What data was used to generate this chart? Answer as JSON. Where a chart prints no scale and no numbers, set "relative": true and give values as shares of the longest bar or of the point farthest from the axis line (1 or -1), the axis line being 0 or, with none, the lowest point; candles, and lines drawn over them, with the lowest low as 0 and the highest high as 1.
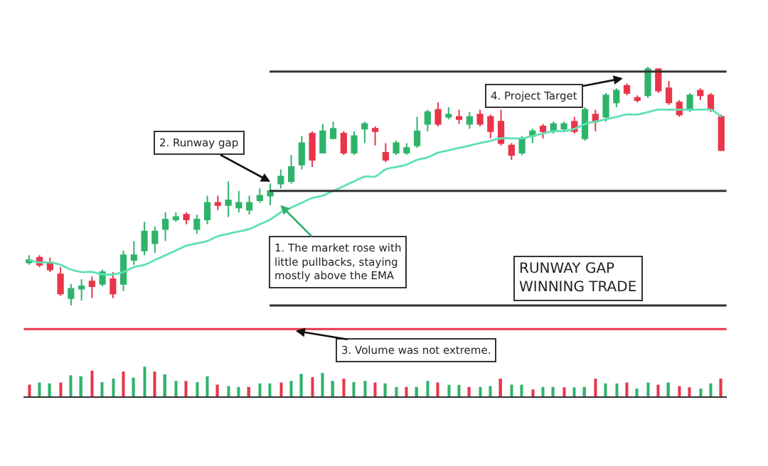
{
  "chart_data": [
    {
      "type": "candlestick",
      "relative": true,
      "tick_labels": false,
      "categories": [
        null,
        null,
        null,
        null,
        null,
        null,
        null,
        null,
        null,
        null,
        null,
        null,
        null,
        null,
        null,
        null,
        null,
        null,
        null,
        null,
        null,
        null,
        null,
        null,
        null,
        null,
        null,
        null,
        null,
        null,
        null,
        null,
        null,
        null,
        null,
        null,
        null,
        null,
        null,
        null,
        null,
        null,
        null,
        null,
        null,
        null,
        null,
        null,
        null,
        null,
        null,
        null,
        null,
        null,
        null,
        null,
        null,
        null,
        null,
        null,
        null,
        null,
        null,
        null,
        null,
        null,
        null
      ],
      "ohlc": [
        [
          0.18,
          0.21,
          0.17,
          0.19
        ],
        [
          0.2,
          0.21,
          0.16,
          0.17
        ],
        [
          0.18,
          0.2,
          0.14,
          0.15
        ],
        [
          0.13,
          0.16,
          0.04,
          0.05
        ],
        [
          0.03,
          0.09,
          0,
          0.07
        ],
        [
          0.07,
          0.11,
          0.02,
          0.08
        ],
        [
          0.1,
          0.12,
          0.03,
          0.08
        ],
        [
          0.09,
          0.15,
          0.08,
          0.14
        ],
        [
          0.11,
          0.14,
          0.03,
          0.05
        ],
        [
          0.09,
          0.23,
          0.06,
          0.21
        ],
        [
          0.19,
          0.27,
          0.17,
          0.21
        ],
        [
          0.23,
          0.35,
          0.21,
          0.31
        ],
        [
          0.26,
          0.33,
          0.22,
          0.31
        ],
        [
          0.32,
          0.39,
          0.27,
          0.36
        ],
        [
          0.36,
          0.39,
          0.35,
          0.37
        ],
        [
          0.38,
          0.39,
          0.34,
          0.36
        ],
        [
          0.32,
          0.38,
          0.3,
          0.36
        ],
        [
          0.36,
          0.46,
          0.34,
          0.43
        ],
        [
          0.43,
          0.46,
          0.4,
          0.42
        ],
        [
          0.42,
          0.52,
          0.37,
          0.44
        ],
        [
          0.41,
          0.48,
          0.39,
          0.43
        ],
        [
          0.4,
          0.46,
          0.38,
          0.43
        ],
        [
          0.44,
          0.49,
          0.43,
          0.46
        ],
        [
          0.46,
          0.51,
          0.42,
          0.48
        ],
        [
          0.51,
          0.57,
          0.49,
          0.54
        ],
        [
          0.52,
          0.63,
          0.51,
          0.58
        ],
        [
          0.59,
          0.71,
          0.57,
          0.68
        ],
        [
          0.72,
          0.73,
          0.58,
          0.61
        ],
        [
          0.64,
          0.76,
          0.64,
          0.73
        ],
        [
          0.7,
          0.77,
          0.7,
          0.74
        ],
        [
          0.72,
          0.73,
          0.63,
          0.64
        ],
        [
          0.64,
          0.73,
          0.63,
          0.71
        ],
        [
          0.74,
          0.77,
          0.68,
          0.76
        ],
        [
          0.74,
          0.75,
          0.67,
          0.73
        ],
        [
          0.64,
          0.68,
          0.6,
          0.61
        ],
        [
          0.64,
          0.69,
          0.63,
          0.68
        ],
        [
          0.64,
          0.68,
          0.63,
          0.66
        ],
        [
          0.67,
          0.79,
          0.66,
          0.73
        ],
        [
          0.76,
          0.82,
          0.73,
          0.81
        ],
        [
          0.82,
          0.85,
          0.75,
          0.76
        ],
        [
          0.79,
          0.83,
          0.78,
          0.8
        ],
        [
          0.79,
          0.82,
          0.76,
          0.78
        ],
        [
          0.76,
          0.81,
          0.74,
          0.79
        ],
        [
          0.8,
          0.82,
          0.75,
          0.76
        ],
        [
          0.79,
          0.8,
          0.7,
          0.73
        ],
        [
          0.77,
          0.82,
          0.67,
          0.68
        ],
        [
          0.67,
          0.68,
          0.61,
          0.63
        ],
        [
          0.64,
          0.71,
          0.63,
          0.7
        ],
        [
          0.71,
          0.74,
          0.68,
          0.73
        ],
        [
          0.75,
          0.76,
          0.7,
          0.73
        ],
        [
          0.73,
          0.77,
          0.72,
          0.76
        ],
        [
          0.74,
          0.77,
          0.73,
          0.76
        ],
        [
          0.77,
          0.79,
          0.72,
          0.73
        ],
        [
          0.7,
          0.83,
          0.69,
          0.82
        ],
        [
          0.8,
          0.82,
          0.73,
          0.77
        ],
        [
          0.79,
          0.89,
          0.77,
          0.88
        ],
        [
          0.85,
          0.91,
          0.83,
          0.9
        ],
        [
          0.92,
          0.93,
          0.88,
          0.89
        ],
        [
          0.87,
          0.88,
          0.85,
          0.86
        ],
        [
          0.88,
          1,
          0.87,
          0.99
        ],
        [
          0.99,
          0.99,
          0.89,
          0.9
        ],
        [
          0.91,
          0.94,
          0.84,
          0.85
        ],
        [
          0.85,
          0.86,
          0.79,
          0.8
        ],
        [
          0.82,
          0.89,
          0.81,
          0.88
        ],
        [
          0.9,
          0.91,
          0.86,
          0.88
        ],
        [
          0.88,
          0.89,
          0.81,
          0.82
        ],
        [
          0.79,
          0.8,
          0.65,
          0.65
        ]
      ],
      "colors": [
        "#2fb36b",
        "#e8354a",
        "#e8354a",
        "#e8354a",
        "#2fb36b",
        "#2fb36b",
        "#e8354a",
        "#2fb36b",
        "#e8354a",
        "#2fb36b",
        "#2fb36b",
        "#2fb36b",
        "#2fb36b",
        "#2fb36b",
        "#2fb36b",
        "#e8354a",
        "#2fb36b",
        "#2fb36b",
        "#e8354a",
        "#2fb36b",
        "#2fb36b",
        "#2fb36b",
        "#2fb36b",
        "#2fb36b",
        "#2fb36b",
        "#2fb36b",
        "#2fb36b",
        "#e8354a",
        "#2fb36b",
        "#2fb36b",
        "#e8354a",
        "#2fb36b",
        "#2fb36b",
        "#e8354a",
        "#e8354a",
        "#2fb36b",
        "#2fb36b",
        "#2fb36b",
        "#2fb36b",
        "#e8354a",
        "#2fb36b",
        "#e8354a",
        "#2fb36b",
        "#e8354a",
        "#e8354a",
        "#e8354a",
        "#e8354a",
        "#2fb36b",
        "#2fb36b",
        "#e8354a",
        "#2fb36b",
        "#2fb36b",
        "#e8354a",
        "#2fb36b",
        "#e8354a",
        "#2fb36b",
        "#2fb36b",
        "#e8354a",
        "#e8354a",
        "#2fb36b",
        "#e8354a",
        "#e8354a",
        "#e8354a",
        "#2fb36b",
        "#e8354a",
        "#e8354a",
        "#e8354a"
      ],
      "series": [
        {
          "type": "line",
          "color": "#5fe0b4",
          "values": [
            0.19,
            0.18,
            0.18,
            0.17,
            0.15,
            0.14,
            0.14,
            0.13,
            0.13,
            0.14,
            0.16,
            0.17,
            0.19,
            0.21,
            0.23,
            0.25,
            0.26,
            0.27,
            0.29,
            0.3,
            0.31,
            0.32,
            0.34,
            0.36,
            0.39,
            0.41,
            0.43,
            0.45,
            0.46,
            0.48,
            0.5,
            0.52,
            0.54,
            0.54,
            0.57,
            0.58,
            0.59,
            0.61,
            0.62,
            0.64,
            0.65,
            0.66,
            0.67,
            0.68,
            0.69,
            0.7,
            0.7,
            0.7,
            0.71,
            0.72,
            0.73,
            0.73,
            0.74,
            0.76,
            0.77,
            0.78,
            0.79,
            0.8,
            0.8,
            0.81,
            0.82,
            0.82,
            0.82,
            0.82,
            0.82,
            0.82,
            0.79
          ]
        }
      ],
      "ref_lines": [
        {
          "axis": "y",
          "value": 0.98,
          "color": "#333333"
        },
        {
          "axis": "y",
          "value": 0.48,
          "color": "#333333"
        },
        {
          "axis": "y",
          "value": 0,
          "color": "#333333"
        }
      ],
      "annotations": [
        "2. Runway gap",
        "1. The market rose with\nlittle pullbacks, staying\nmostly above the EMA",
        "4. Project Target",
        "RUNWAY GAP\nWINNING TRADE"
      ]
    },
    {
      "type": "bar",
      "relative": true,
      "tick_labels": false,
      "categories": [
        null,
        null,
        null,
        null,
        null,
        null,
        null,
        null,
        null,
        null,
        null,
        null,
        null,
        null,
        null,
        null,
        null,
        null,
        null,
        null,
        null,
        null,
        null,
        null,
        null,
        null,
        null,
        null,
        null,
        null,
        null,
        null,
        null,
        null,
        null,
        null,
        null,
        null,
        null,
        null,
        null,
        null,
        null,
        null,
        null,
        null,
        null,
        null,
        null,
        null,
        null,
        null,
        null,
        null,
        null,
        null,
        null,
        null,
        null,
        null,
        null,
        null,
        null,
        null,
        null,
        null,
        null
      ],
      "values": [
        0.4,
        0.47,
        0.44,
        0.47,
        0.71,
        0.68,
        0.87,
        0.48,
        0.6,
        0.84,
        0.63,
        1,
        0.84,
        0.74,
        0.52,
        0.52,
        0.48,
        0.68,
        0.4,
        0.35,
        0.32,
        0.32,
        0.44,
        0.44,
        0.47,
        0.52,
        0.76,
        0.65,
        0.79,
        0.52,
        0.6,
        0.48,
        0.52,
        0.47,
        0.44,
        0.32,
        0.32,
        0.32,
        0.52,
        0.47,
        0.39,
        0.39,
        0.32,
        0.32,
        0.35,
        0.6,
        0.4,
        0.4,
        0.24,
        0.32,
        0.32,
        0.31,
        0.31,
        0.32,
        0.6,
        0.44,
        0.44,
        0.47,
        0.27,
        0.47,
        0.4,
        0.47,
        0.35,
        0.31,
        0.27,
        0.44,
        0.6
      ],
      "colors": [
        "#e8354a",
        "#2fb36b",
        "#2fb36b",
        "#e8354a",
        "#2fb36b",
        "#2fb36b",
        "#e8354a",
        "#2fb36b",
        "#2fb36b",
        "#e8354a",
        "#2fb36b",
        "#2fb36b",
        "#e8354a",
        "#2fb36b",
        "#2fb36b",
        "#e8354a",
        "#2fb36b",
        "#2fb36b",
        "#e8354a",
        "#2fb36b",
        "#2fb36b",
        "#e8354a",
        "#2fb36b",
        "#2fb36b",
        "#e8354a",
        "#2fb36b",
        "#2fb36b",
        "#e8354a",
        "#2fb36b",
        "#2fb36b",
        "#e8354a",
        "#2fb36b",
        "#2fb36b",
        "#e8354a",
        "#2fb36b",
        "#2fb36b",
        "#e8354a",
        "#2fb36b",
        "#2fb36b",
        "#e8354a",
        "#2fb36b",
        "#2fb36b",
        "#e8354a",
        "#2fb36b",
        "#2fb36b",
        "#e8354a",
        "#2fb36b",
        "#2fb36b",
        "#e8354a",
        "#2fb36b",
        "#2fb36b",
        "#e8354a",
        "#2fb36b",
        "#2fb36b",
        "#e8354a",
        "#2fb36b",
        "#2fb36b",
        "#e8354a",
        "#2fb36b",
        "#2fb36b",
        "#e8354a",
        "#2fb36b",
        "#e8354a",
        "#e8354a",
        "#2fb36b",
        "#2fb36b",
        "#e8354a"
      ],
      "ref_lines": [
        {
          "axis": "y",
          "value": 2.26,
          "color": "#e8354a"
        }
      ],
      "annotations": [
        "3. Volume was not extreme."
      ]
    }
  ]
}
